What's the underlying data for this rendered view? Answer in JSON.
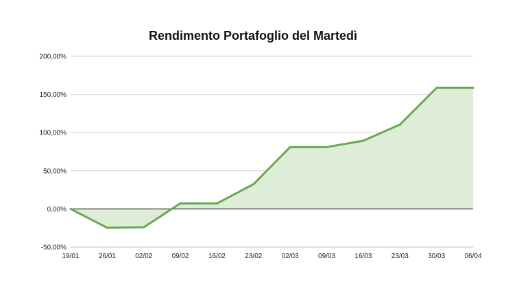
{
  "chart_data": {
    "type": "area",
    "title": "Rendimento Portafoglio del Martedì",
    "xlabel": "",
    "ylabel": "",
    "categories": [
      "19/01",
      "26/01",
      "02/02",
      "09/02",
      "16/02",
      "23/02",
      "02/03",
      "09/03",
      "16/03",
      "23/03",
      "30/03",
      "06/04"
    ],
    "values": [
      0,
      -24.7,
      -24.0,
      7.3,
      7.2,
      32.5,
      81.0,
      81.0,
      89.4,
      110.5,
      158.5,
      158.5
    ],
    "y_unit": "percent",
    "ylim": [
      -50,
      200
    ],
    "yticks": [
      -50,
      0,
      50,
      100,
      150,
      200
    ],
    "ytick_labels": [
      "-50,00%",
      "0,00%",
      "50,00%",
      "100,00%",
      "150,00%",
      "200,00%"
    ],
    "grid": true,
    "legend": "none",
    "colors": {
      "line": "#6aa84f",
      "fill": "#deedd7",
      "grid": "#d6d6d6",
      "zero_axis": "#000000",
      "bottom_axis": "#bfbfbf"
    }
  }
}
